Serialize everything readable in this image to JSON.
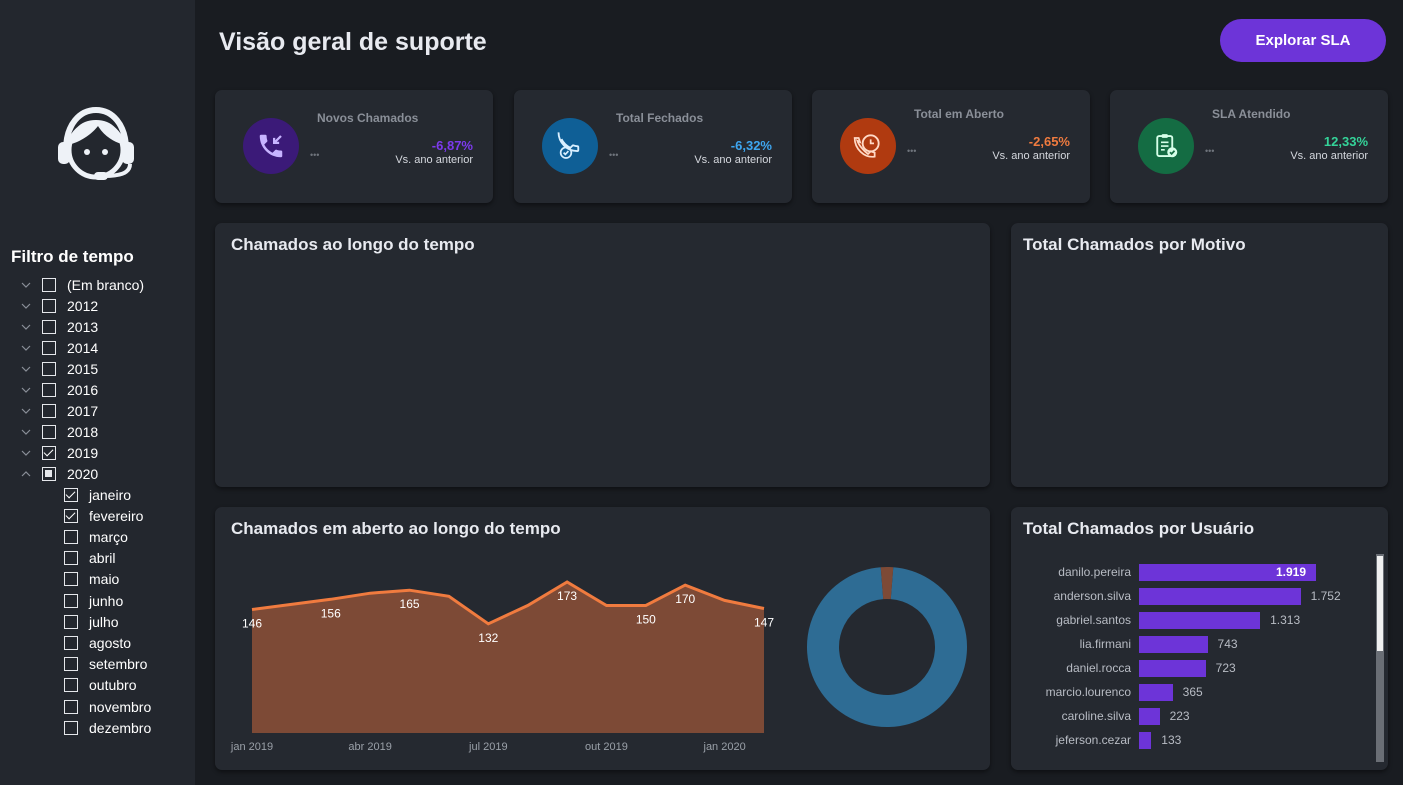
{
  "header": {
    "title": "Visão geral de suporte",
    "cta_label": "Explorar SLA"
  },
  "sidebar": {
    "avatar_icon": "headset-user-icon",
    "filter_title": "Filtro de tempo",
    "years": [
      {
        "label": "(Em branco)",
        "state": "unchecked"
      },
      {
        "label": "2012",
        "state": "unchecked"
      },
      {
        "label": "2013",
        "state": "unchecked"
      },
      {
        "label": "2014",
        "state": "unchecked"
      },
      {
        "label": "2015",
        "state": "unchecked"
      },
      {
        "label": "2016",
        "state": "unchecked"
      },
      {
        "label": "2017",
        "state": "unchecked"
      },
      {
        "label": "2018",
        "state": "unchecked"
      },
      {
        "label": "2019",
        "state": "checked"
      },
      {
        "label": "2020",
        "state": "partial",
        "expanded": true
      }
    ],
    "months": [
      {
        "label": "janeiro",
        "state": "checked"
      },
      {
        "label": "fevereiro",
        "state": "checked"
      },
      {
        "label": "março",
        "state": "unchecked"
      },
      {
        "label": "abril",
        "state": "unchecked"
      },
      {
        "label": "maio",
        "state": "unchecked"
      },
      {
        "label": "junho",
        "state": "unchecked"
      },
      {
        "label": "julho",
        "state": "unchecked"
      },
      {
        "label": "agosto",
        "state": "unchecked"
      },
      {
        "label": "setembro",
        "state": "unchecked"
      },
      {
        "label": "outubro",
        "state": "unchecked"
      },
      {
        "label": "novembro",
        "state": "unchecked"
      },
      {
        "label": "dezembro",
        "state": "unchecked"
      }
    ]
  },
  "kpis": [
    {
      "label": "Novos Chamados",
      "change": "-6,87%",
      "sub": "Vs. ano anterior",
      "color": "#7c3aed",
      "icon_bg": "#3b1a78",
      "icon": "incoming-call-icon"
    },
    {
      "label": "Total Fechados",
      "change": "-6,32%",
      "sub": "Vs. ano anterior",
      "color": "#3ea6f0",
      "icon_bg": "#0f5f96",
      "icon": "call-check-icon"
    },
    {
      "label": "Total em Aberto",
      "change": "-2,65%",
      "sub": "Vs. ano anterior",
      "color": "#f07b3f",
      "icon_bg": "#b03a10",
      "icon": "call-clock-icon"
    },
    {
      "label": "SLA Atendido",
      "change": "12,33%",
      "sub": "Vs. ano anterior",
      "color": "#34d399",
      "icon_bg": "#146c43",
      "icon": "clipboard-check-icon"
    }
  ],
  "panels": {
    "over_time_title": "Chamados ao longo do tempo",
    "by_reason_title": "Total Chamados por Motivo",
    "open_over_time_title": "Chamados em aberto ao longo do tempo",
    "by_user_title": "Total Chamados por Usuário"
  },
  "chart_data": [
    {
      "type": "area",
      "title": "Chamados em aberto ao longo do tempo",
      "x": [
        "jan 2019",
        "fev 2019",
        "mar 2019",
        "abr 2019",
        "mai 2019",
        "jun 2019",
        "jul 2019",
        "ago 2019",
        "set 2019",
        "out 2019",
        "nov 2019",
        "dez 2019",
        "jan 2020",
        "fev 2020"
      ],
      "values": [
        146,
        151,
        156,
        162,
        165,
        159,
        132,
        150,
        173,
        150,
        150,
        170,
        155,
        147
      ],
      "labeled_points": [
        {
          "index": 0,
          "label": "146"
        },
        {
          "index": 2,
          "label": "156"
        },
        {
          "index": 4,
          "label": "165"
        },
        {
          "index": 6,
          "label": "132"
        },
        {
          "index": 8,
          "label": "173"
        },
        {
          "index": 10,
          "label": "150"
        },
        {
          "index": 11,
          "label": "170"
        },
        {
          "index": 13,
          "label": "147"
        }
      ],
      "x_ticks": [
        "jan 2019",
        "abr 2019",
        "jul 2019",
        "out 2019",
        "jan 2020"
      ],
      "ylim": [
        0,
        180
      ],
      "line_color": "#f07b3f",
      "fill_color": "#7d4a36"
    },
    {
      "type": "pie",
      "variant": "donut",
      "slices": [
        {
          "value": 97.5,
          "color": "#2e6c94"
        },
        {
          "value": 2.5,
          "color": "#7d4a36"
        }
      ]
    },
    {
      "type": "bar",
      "orientation": "horizontal",
      "title": "Total Chamados por Usuário",
      "categories": [
        "danilo.pereira",
        "anderson.silva",
        "gabriel.santos",
        "lia.firmani",
        "daniel.rocca",
        "marcio.lourenco",
        "caroline.silva",
        "jeferson.cezar"
      ],
      "values": [
        1919,
        1752,
        1313,
        743,
        723,
        365,
        223,
        133
      ],
      "value_labels": [
        "1.919",
        "1.752",
        "1.313",
        "743",
        "723",
        "365",
        "223",
        "133"
      ],
      "xlim": [
        0,
        1919
      ],
      "color": "#6d34d8"
    }
  ]
}
